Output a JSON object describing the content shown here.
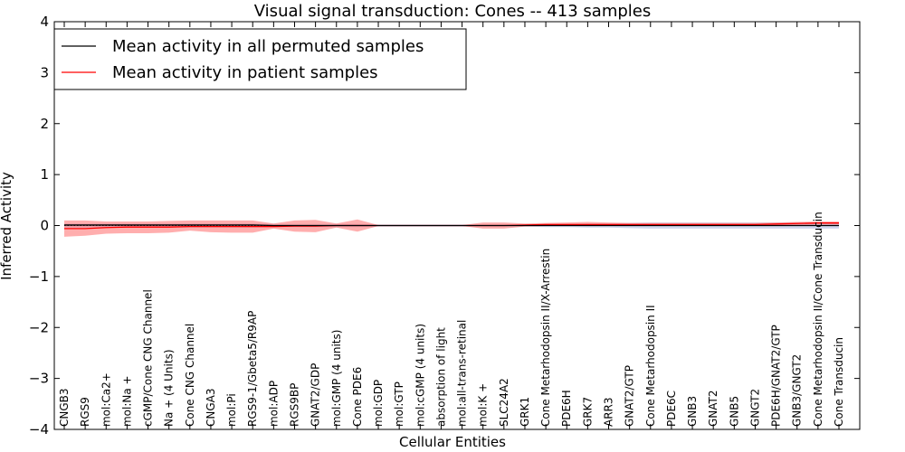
{
  "chart_data": {
    "type": "line",
    "title": "Visual signal transduction: Cones -- 413 samples",
    "xlabel": "Cellular Entities",
    "ylabel": "Inferred Activity",
    "ylim": [
      -4,
      4
    ],
    "yticks": [
      -4,
      -3,
      -2,
      -1,
      0,
      1,
      2,
      3,
      4
    ],
    "ytick_labels": [
      "−4",
      "−3",
      "−2",
      "−1",
      "0",
      "1",
      "2",
      "3",
      "4"
    ],
    "legend_position": "top-left",
    "categories": [
      "CNGB3",
      "RGS9",
      "mol:Ca2+",
      "mol:Na +",
      "cGMP/Cone CNG Channel",
      "Na + (4 Units)",
      "Cone CNG Channel",
      "CNGA3",
      "mol:Pi",
      "RGS9-1/Gbeta5/R9AP",
      "mol:ADP",
      "RGS9BP",
      "GNAT2/GDP",
      "mol:GMP (4 units)",
      "Cone PDE6",
      "mol:GDP",
      "mol:GTP",
      "mol:cGMP (4 units)",
      "absorption of light",
      "mol:all-trans-retinal",
      "mol:K +",
      "SLC24A2",
      "GRK1",
      "Cone Metarhodopsin II/X-Arrestin",
      "PDE6H",
      "GRK7",
      "ARR3",
      "GNAT2/GTP",
      "Cone Metarhodopsin II",
      "PDE6C",
      "GNB3",
      "GNAT2",
      "GNB5",
      "GNGT2",
      "PDE6H/GNAT2/GTP",
      "GNB3/GNGT2",
      "Cone Metarhodopsin II/Cone Transducin",
      "Cone Transducin"
    ],
    "series": [
      {
        "name": "Mean activity in all permuted samples",
        "color": "#000000",
        "band_color": "#9aa4d8",
        "values": [
          0.01,
          0.01,
          0.01,
          0.01,
          0.01,
          0.01,
          0.01,
          0.01,
          0.01,
          0.01,
          0.0,
          0.0,
          0.0,
          0.0,
          0.0,
          0.0,
          0.0,
          0.0,
          0.0,
          0.0,
          0.0,
          0.0,
          0.0,
          0.0,
          0.0,
          0.0,
          0.0,
          0.0,
          0.0,
          0.0,
          0.0,
          0.0,
          0.0,
          0.0,
          0.0,
          0.0,
          0.0,
          0.0
        ],
        "lower": [
          -0.04,
          -0.04,
          -0.04,
          -0.04,
          -0.04,
          -0.04,
          -0.04,
          -0.04,
          -0.04,
          -0.04,
          -0.03,
          -0.03,
          -0.03,
          -0.03,
          -0.03,
          -0.02,
          -0.02,
          -0.02,
          -0.02,
          -0.02,
          -0.02,
          -0.02,
          -0.02,
          -0.03,
          -0.03,
          -0.04,
          -0.04,
          -0.05,
          -0.06,
          -0.06,
          -0.06,
          -0.06,
          -0.06,
          -0.06,
          -0.06,
          -0.06,
          -0.06,
          -0.06
        ],
        "upper": [
          0.04,
          0.04,
          0.04,
          0.04,
          0.04,
          0.04,
          0.04,
          0.04,
          0.04,
          0.04,
          0.03,
          0.03,
          0.03,
          0.03,
          0.03,
          0.02,
          0.02,
          0.02,
          0.02,
          0.02,
          0.02,
          0.02,
          0.02,
          0.03,
          0.03,
          0.04,
          0.04,
          0.05,
          0.06,
          0.06,
          0.06,
          0.06,
          0.06,
          0.06,
          0.06,
          0.06,
          0.06,
          0.06
        ]
      },
      {
        "name": "Mean activity in patient samples",
        "color": "#ff0000",
        "band_color": "#ff6b6b",
        "values": [
          -0.06,
          -0.06,
          -0.04,
          -0.03,
          -0.03,
          -0.03,
          -0.02,
          -0.02,
          -0.02,
          -0.02,
          -0.02,
          -0.01,
          -0.01,
          0.0,
          0.0,
          0.0,
          0.0,
          0.0,
          0.0,
          0.0,
          0.0,
          0.0,
          0.01,
          0.02,
          0.02,
          0.02,
          0.02,
          0.02,
          0.02,
          0.02,
          0.02,
          0.02,
          0.02,
          0.02,
          0.03,
          0.04,
          0.05,
          0.05
        ],
        "lower": [
          -0.22,
          -0.2,
          -0.16,
          -0.15,
          -0.15,
          -0.14,
          -0.1,
          -0.13,
          -0.14,
          -0.14,
          -0.06,
          -0.12,
          -0.13,
          -0.04,
          -0.12,
          -0.01,
          -0.01,
          -0.01,
          -0.01,
          -0.01,
          -0.06,
          -0.06,
          -0.02,
          -0.01,
          -0.01,
          -0.01,
          -0.01,
          -0.01,
          0.0,
          0.0,
          0.0,
          0.0,
          0.0,
          0.0,
          0.0,
          0.01,
          0.02,
          0.02
        ],
        "upper": [
          0.1,
          0.1,
          0.08,
          0.08,
          0.08,
          0.09,
          0.1,
          0.1,
          0.1,
          0.1,
          0.04,
          0.1,
          0.11,
          0.04,
          0.12,
          0.01,
          0.01,
          0.01,
          0.01,
          0.01,
          0.06,
          0.06,
          0.04,
          0.05,
          0.06,
          0.07,
          0.06,
          0.05,
          0.05,
          0.05,
          0.05,
          0.05,
          0.05,
          0.05,
          0.06,
          0.07,
          0.08,
          0.08
        ]
      }
    ]
  }
}
